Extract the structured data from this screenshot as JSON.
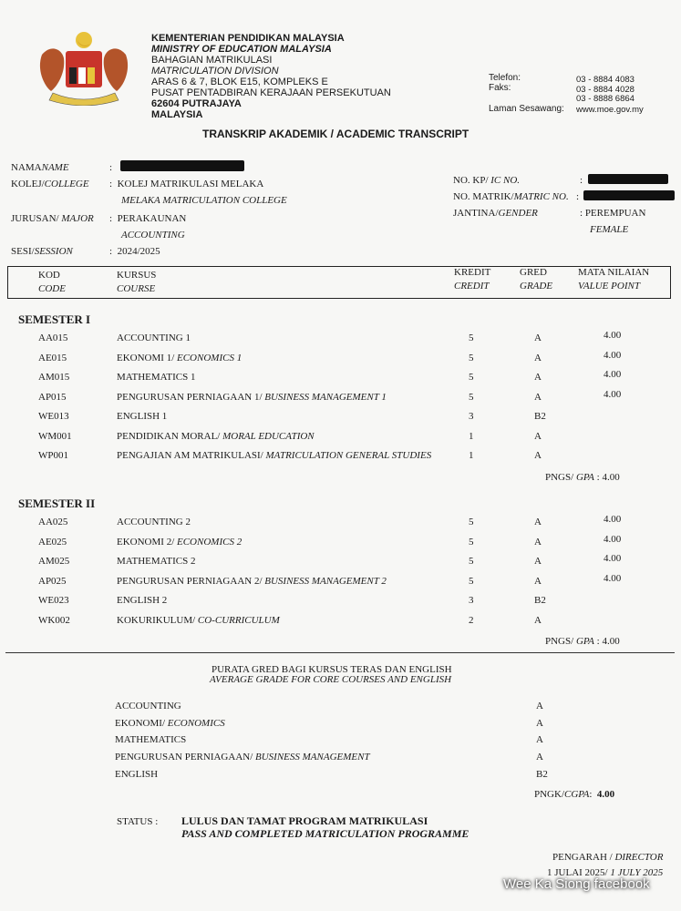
{
  "letterhead": {
    "lines": [
      "KEMENTERIAN PENDIDIKAN MALAYSIA",
      "MINISTRY OF EDUCATION MALAYSIA",
      "BAHAGIAN MATRIKULASI",
      "MATRICULATION DIVISION",
      "ARAS 6 & 7, BLOK E15, KOMPLEKS E",
      "PUSAT PENTADBIRAN KERAJAAN PERSEKUTUAN",
      "62604 PUTRAJAYA",
      "MALAYSIA"
    ],
    "telefon_label": "Telefon:",
    "telefon": "03 - 8884 4083",
    "faks_label": "Faks:",
    "faks1": "03 - 8884 4028",
    "faks2": "03 - 8888 6864",
    "laman_label": "Laman Sesawang:",
    "laman": "www.moe.gov.my",
    "emblem": "coat-of-arms-malaysia"
  },
  "title": "TRANSKRIP AKADEMIK / ACADEMIC TRANSCRIPT",
  "student": {
    "name_label": "NAMA",
    "name_label_en": "NAME",
    "college_label": "KOLEJ/",
    "college_label_en": "COLLEGE",
    "college": "KOLEJ MATRIKULASI MELAKA",
    "college_en": "MELAKA MATRICULATION COLLEGE",
    "major_label": "JURUSAN/",
    "major_label_en": "MAJOR",
    "major": "PERAKAUNAN",
    "major_en": "ACCOUNTING",
    "session_label": "SESI/",
    "session_label_en": "SESSION",
    "session": "2024/2025",
    "ic_label": "NO. KP/",
    "ic_label_en": "IC NO.",
    "matric_label": "NO. MATRIK/",
    "matric_label_en": "MATRIC NO.",
    "gender_label": "JANTINA/",
    "gender_label_en": "GENDER",
    "gender": "PEREMPUAN",
    "gender_en": "FEMALE",
    "colon": ":"
  },
  "table_header": {
    "code": "KOD",
    "code_en": "CODE",
    "course": "KURSUS",
    "course_en": "COURSE",
    "credit": "KREDIT",
    "credit_en": "CREDIT",
    "grade": "GRED",
    "grade_en": "GRADE",
    "value": "MATA NILAIAN",
    "value_en": "VALUE POINT"
  },
  "semesters": [
    {
      "title": "SEMESTER I",
      "courses": [
        {
          "code": "AA015",
          "name": "ACCOUNTING 1",
          "name_en": "",
          "credit": "5",
          "grade": "A",
          "value": "4.00"
        },
        {
          "code": "AE015",
          "name": "EKONOMI 1/ ",
          "name_en": "ECONOMICS 1",
          "credit": "5",
          "grade": "A",
          "value": "4.00"
        },
        {
          "code": "AM015",
          "name": "MATHEMATICS 1",
          "name_en": "",
          "credit": "5",
          "grade": "A",
          "value": "4.00"
        },
        {
          "code": "AP015",
          "name": "PENGURUSAN PERNIAGAAN 1/ ",
          "name_en": "BUSINESS MANAGEMENT 1",
          "credit": "5",
          "grade": "A",
          "value": "4.00"
        },
        {
          "code": "WE013",
          "name": "ENGLISH 1",
          "name_en": "",
          "credit": "3",
          "grade": "B2",
          "value": ""
        },
        {
          "code": "WM001",
          "name": "PENDIDIKAN MORAL/ ",
          "name_en": "MORAL EDUCATION",
          "credit": "1",
          "grade": "A",
          "value": ""
        },
        {
          "code": "WP001",
          "name": "PENGAJIAN AM MATRIKULASI/ ",
          "name_en": "MATRICULATION GENERAL STUDIES",
          "credit": "1",
          "grade": "A",
          "value": ""
        }
      ],
      "gpa_label": "PNGS/ ",
      "gpa_label_en": "GPA",
      "gpa": ": 4.00"
    },
    {
      "title": "SEMESTER II",
      "courses": [
        {
          "code": "AA025",
          "name": "ACCOUNTING 2",
          "name_en": "",
          "credit": "5",
          "grade": "A",
          "value": "4.00"
        },
        {
          "code": "AE025",
          "name": "EKONOMI 2/ ",
          "name_en": "ECONOMICS 2",
          "credit": "5",
          "grade": "A",
          "value": "4.00"
        },
        {
          "code": "AM025",
          "name": "MATHEMATICS 2",
          "name_en": "",
          "credit": "5",
          "grade": "A",
          "value": "4.00"
        },
        {
          "code": "AP025",
          "name": "PENGURUSAN PERNIAGAAN 2/ ",
          "name_en": "BUSINESS MANAGEMENT 2",
          "credit": "5",
          "grade": "A",
          "value": "4.00"
        },
        {
          "code": "WE023",
          "name": "ENGLISH 2",
          "name_en": "",
          "credit": "3",
          "grade": "B2",
          "value": ""
        },
        {
          "code": "WK002",
          "name": "KOKURIKULUM/ ",
          "name_en": "CO-CURRICULUM",
          "credit": "2",
          "grade": "A",
          "value": ""
        }
      ],
      "gpa_label": "PNGS/ ",
      "gpa_label_en": "GPA",
      "gpa": ": 4.00"
    }
  ],
  "average": {
    "title": "PURATA GRED BAGI KURSUS TERAS DAN ENGLISH",
    "title_en": "AVERAGE GRADE FOR CORE COURSES AND ENGLISH",
    "items": [
      {
        "name": "ACCOUNTING",
        "name_en": "",
        "grade": "A"
      },
      {
        "name": "EKONOMI/ ",
        "name_en": "ECONOMICS",
        "grade": "A"
      },
      {
        "name": "MATHEMATICS",
        "name_en": "",
        "grade": "A"
      },
      {
        "name": "PENGURUSAN PERNIAGAAN/ ",
        "name_en": "BUSINESS MANAGEMENT",
        "grade": "A"
      },
      {
        "name": "ENGLISH",
        "name_en": "",
        "grade": "B2"
      }
    ],
    "cgpa_label": "PNGK/",
    "cgpa_label_en": "CGPA",
    "cgpa": "4.00"
  },
  "status": {
    "label": "STATUS :",
    "value": "LULUS DAN TAMAT PROGRAM MATRIKULASI",
    "value_en": "PASS AND COMPLETED MATRICULATION PROGRAMME"
  },
  "signature": {
    "role": "PENGARAH / ",
    "role_en": "DIRECTOR",
    "date": "1 JULAI 2025/ ",
    "date_en": "1 JULY 2025"
  },
  "watermark": "Wee Ka Siong facebook"
}
